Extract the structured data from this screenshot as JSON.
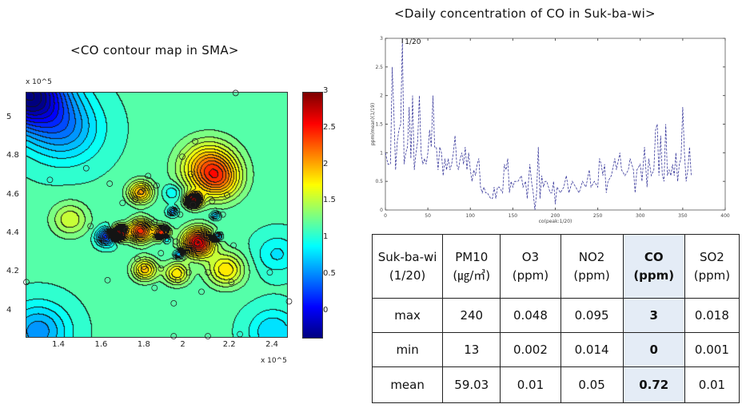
{
  "chart_data": [
    {
      "type": "heatmap",
      "title": "<CO contour map in SMA>",
      "x_ticks": [
        "1.4",
        "1.6",
        "1.8",
        "2",
        "2.2",
        "2.4"
      ],
      "y_ticks": [
        "4",
        "4.2",
        "4.4",
        "4.6",
        "4.8",
        "5"
      ],
      "x_multiplier": "x 10^5",
      "y_multiplier": "x 10^5",
      "xlim": [
        1.246,
        2.467
      ],
      "ylim": [
        3.87,
        5.136
      ],
      "colorbar": {
        "ticks": [
          "0",
          "0.5",
          "1",
          "1.5",
          "2",
          "2.5",
          "3"
        ],
        "range": [
          -0.35,
          3
        ],
        "colormap": "jet"
      },
      "contours": true,
      "station_markers": "circles"
    },
    {
      "type": "line",
      "title": "<Daily concentration of CO in Suk-ba-wi>",
      "xlabel": "co(peak:1/20)",
      "ylabel": "ppm(mean)(1/19)",
      "annotation": "1/20",
      "xlim": [
        0,
        400
      ],
      "ylim": [
        0,
        3
      ],
      "x_ticks": [
        "0",
        "50",
        "100",
        "150",
        "200",
        "250",
        "300",
        "350",
        "400"
      ],
      "y_ticks": [
        "0",
        "0.5",
        "1",
        "1.5",
        "2",
        "2.5",
        "3"
      ],
      "line_color": "#3b3b9c",
      "line_style": "dashed",
      "x": [
        0,
        3,
        6,
        8,
        10,
        12,
        14,
        16,
        18,
        20,
        22,
        24,
        26,
        28,
        30,
        32,
        34,
        36,
        38,
        40,
        42,
        44,
        46,
        48,
        50,
        52,
        54,
        56,
        58,
        60,
        62,
        64,
        66,
        68,
        70,
        72,
        74,
        76,
        78,
        80,
        82,
        84,
        86,
        88,
        90,
        92,
        94,
        96,
        98,
        100,
        102,
        104,
        106,
        108,
        110,
        112,
        114,
        116,
        118,
        120,
        124,
        126,
        128,
        130,
        132,
        134,
        138,
        140,
        142,
        144,
        146,
        148,
        150,
        152,
        156,
        160,
        162,
        165,
        167,
        170,
        172,
        174,
        176,
        178,
        180,
        182,
        184,
        186,
        188,
        190,
        194,
        196,
        198,
        200,
        202,
        206,
        210,
        213,
        216,
        220,
        224,
        228,
        232,
        236,
        240,
        242,
        246,
        250,
        252,
        254,
        256,
        258,
        260,
        262,
        266,
        270,
        272,
        276,
        278,
        282,
        286,
        288,
        292,
        294,
        296,
        300,
        302,
        305,
        308,
        310,
        313,
        316,
        318,
        320,
        322,
        324,
        326,
        328,
        330,
        332,
        334,
        336,
        338,
        340,
        342,
        344,
        346,
        348,
        350,
        352,
        354,
        356,
        358,
        360
      ],
      "y": [
        1.0,
        0.8,
        0.8,
        2.5,
        1.7,
        0.7,
        1.2,
        1.4,
        1.5,
        3.0,
        0.8,
        1.0,
        1.1,
        1.8,
        0.9,
        2.0,
        0.7,
        1.0,
        1.2,
        2.0,
        1.0,
        0.8,
        0.9,
        0.8,
        1.0,
        1.4,
        1.1,
        2.0,
        1.1,
        1.1,
        0.7,
        1.1,
        1.0,
        0.6,
        0.9,
        0.7,
        0.9,
        0.7,
        0.8,
        1.0,
        1.3,
        0.8,
        0.7,
        0.9,
        1.0,
        0.8,
        1.1,
        0.7,
        1.0,
        0.7,
        0.5,
        0.7,
        0.6,
        0.8,
        0.9,
        0.4,
        0.3,
        0.4,
        0.3,
        0.3,
        0.2,
        0.2,
        0.4,
        0.2,
        0.4,
        0.4,
        0.3,
        0.8,
        0.7,
        0.9,
        0.3,
        0.5,
        0.4,
        0.5,
        0.5,
        0.6,
        0.4,
        0.5,
        0.2,
        0.8,
        0.5,
        0.3,
        0.0,
        0.3,
        1.1,
        0.2,
        0.6,
        0.4,
        0.5,
        0.5,
        0.3,
        0.3,
        0.5,
        0.1,
        0.4,
        0.3,
        0.4,
        0.6,
        0.3,
        0.5,
        0.4,
        0.3,
        0.5,
        0.4,
        0.7,
        0.4,
        0.5,
        0.4,
        0.9,
        0.8,
        0.6,
        0.8,
        0.3,
        0.5,
        0.6,
        0.9,
        0.7,
        1.0,
        0.7,
        0.6,
        0.7,
        0.9,
        0.7,
        0.3,
        0.7,
        0.8,
        0.5,
        1.1,
        0.4,
        0.9,
        0.6,
        0.7,
        1.4,
        1.5,
        0.6,
        1.3,
        0.6,
        0.5,
        1.5,
        0.6,
        0.7,
        0.6,
        0.8,
        0.6,
        1.0,
        0.5,
        0.8,
        0.9,
        1.8,
        1.0,
        0.5,
        0.7,
        1.1,
        0.6
      ]
    }
  ],
  "table": {
    "headers": [
      "Suk-ba-wi (1/20)",
      "PM10 (㎍/㎥)",
      "O3 (ppm)",
      "NO2 (ppm)",
      "CO (ppm)",
      "SO2 (ppm)"
    ],
    "rows": [
      [
        "max",
        "240",
        "0.048",
        "0.095",
        "3",
        "0.018"
      ],
      [
        "min",
        "13",
        "0.002",
        "0.014",
        "0",
        "0.001"
      ],
      [
        "mean",
        "59.03",
        "0.01",
        "0.05",
        "0.72",
        "0.01"
      ]
    ],
    "highlight_column": "CO (ppm)",
    "highlight_color": "#e4ecf6"
  }
}
